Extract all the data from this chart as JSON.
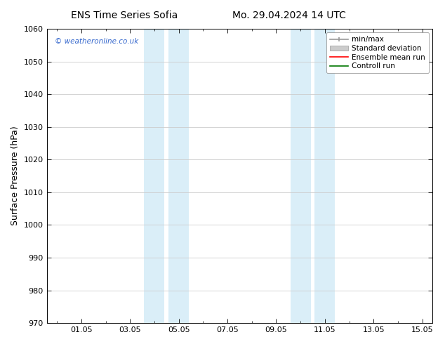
{
  "title_left": "ENS Time Series Sofia",
  "title_right": "Mo. 29.04.2024 14 UTC",
  "ylabel": "Surface Pressure (hPa)",
  "ylim": [
    970,
    1060
  ],
  "yticks": [
    970,
    980,
    990,
    1000,
    1010,
    1020,
    1030,
    1040,
    1050,
    1060
  ],
  "xtick_labels": [
    "01.05",
    "03.05",
    "05.05",
    "07.05",
    "09.05",
    "11.05",
    "13.05",
    "15.05"
  ],
  "xtick_positions": [
    2,
    4,
    6,
    8,
    10,
    12,
    14,
    16
  ],
  "xlim": [
    0.58,
    16.42
  ],
  "shaded_regions": [
    {
      "x_start": 4.58,
      "x_end": 5.42
    },
    {
      "x_start": 5.58,
      "x_end": 6.42
    },
    {
      "x_start": 10.58,
      "x_end": 11.42
    },
    {
      "x_start": 11.58,
      "x_end": 12.42
    }
  ],
  "shaded_color": "#daeef8",
  "background_color": "#ffffff",
  "watermark_text": "© weatheronline.co.uk",
  "watermark_color": "#3366cc",
  "grid_color": "#cccccc",
  "tick_color": "#000000",
  "font_size": 8,
  "title_font_size": 10,
  "legend_fontsize": 7.5
}
